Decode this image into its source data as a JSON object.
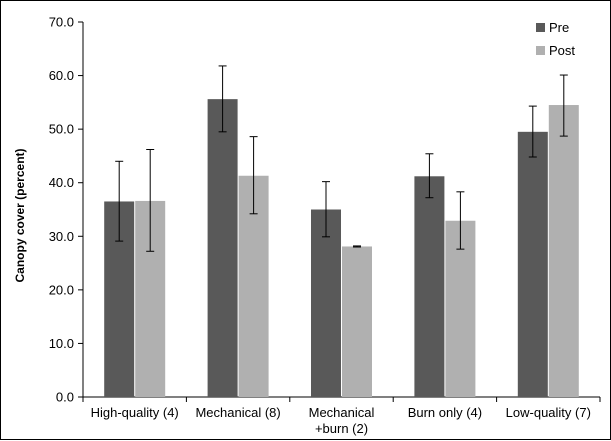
{
  "chart_data": {
    "type": "bar",
    "title": "",
    "xlabel": "",
    "ylabel": "Canopy cover (percent)",
    "ylim": [
      0,
      70
    ],
    "yticks": [
      "0.0",
      "10.0",
      "20.0",
      "30.0",
      "40.0",
      "50.0",
      "60.0",
      "70.0"
    ],
    "categories": [
      [
        "High-quality (4)"
      ],
      [
        "Mechanical (8)"
      ],
      [
        "Mechanical",
        "+burn (2)"
      ],
      [
        "Burn only (4)"
      ],
      [
        "Low-quality (7)"
      ]
    ],
    "series": [
      {
        "name": "Pre",
        "color": "#595959",
        "values": [
          36.5,
          55.6,
          35.0,
          41.2,
          49.5
        ],
        "error_low": [
          29.1,
          49.5,
          29.9,
          37.2,
          44.8
        ],
        "error_high": [
          44.0,
          61.8,
          40.2,
          45.4,
          54.3
        ]
      },
      {
        "name": "Post",
        "color": "#b0b0b0",
        "values": [
          36.6,
          41.3,
          28.1,
          32.9,
          54.5
        ],
        "error_low": [
          27.2,
          34.2,
          28.0,
          27.6,
          48.7
        ],
        "error_high": [
          46.2,
          48.6,
          28.2,
          38.3,
          60.1
        ]
      }
    ],
    "legend": {
      "placement": "top-right"
    },
    "grid": false
  }
}
